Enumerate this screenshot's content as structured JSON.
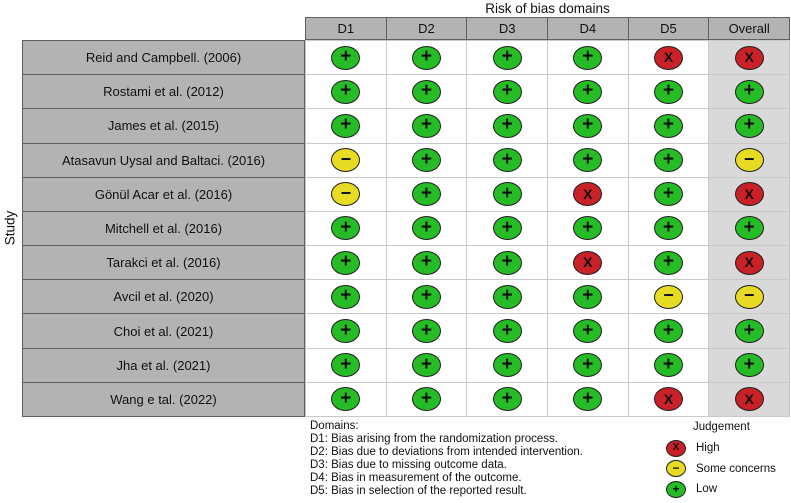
{
  "chart_data": {
    "type": "table",
    "title": "Risk of bias domains",
    "ylabel": "Study",
    "columns": [
      "D1",
      "D2",
      "D3",
      "D4",
      "D5",
      "Overall"
    ],
    "legend_position": "bottom",
    "judgement_styles": {
      "low": {
        "symbol": "+",
        "color": "#26bc26",
        "label": "Low"
      },
      "some": {
        "symbol": "−",
        "color": "#e7dc23",
        "label": "Some concerns"
      },
      "high": {
        "symbol": "X",
        "color": "#c92127",
        "label": "High"
      }
    },
    "rows": [
      {
        "study": "Reid and Campbell. (2006)",
        "judgements": [
          "low",
          "low",
          "low",
          "low",
          "high",
          "high"
        ]
      },
      {
        "study": "Rostami et al. (2012)",
        "judgements": [
          "low",
          "low",
          "low",
          "low",
          "low",
          "low"
        ]
      },
      {
        "study": "James et al. (2015)",
        "judgements": [
          "low",
          "low",
          "low",
          "low",
          "low",
          "low"
        ]
      },
      {
        "study": "Atasavun Uysal and Baltaci. (2016)",
        "judgements": [
          "some",
          "low",
          "low",
          "low",
          "low",
          "some"
        ]
      },
      {
        "study": "Gönül Acar et al. (2016)",
        "judgements": [
          "some",
          "low",
          "low",
          "high",
          "low",
          "high"
        ]
      },
      {
        "study": "Mitchell et al. (2016)",
        "judgements": [
          "low",
          "low",
          "low",
          "low",
          "low",
          "low"
        ]
      },
      {
        "study": "Tarakci et al. (2016)",
        "judgements": [
          "low",
          "low",
          "low",
          "high",
          "low",
          "high"
        ]
      },
      {
        "study": "Avcil et al. (2020)",
        "judgements": [
          "low",
          "low",
          "low",
          "low",
          "some",
          "some"
        ]
      },
      {
        "study": "Choi et al. (2021)",
        "judgements": [
          "low",
          "low",
          "low",
          "low",
          "low",
          "low"
        ]
      },
      {
        "study": "Jha et al. (2021)",
        "judgements": [
          "low",
          "low",
          "low",
          "low",
          "low",
          "low"
        ]
      },
      {
        "study": "Wang e tal. (2022)",
        "judgements": [
          "low",
          "low",
          "low",
          "low",
          "high",
          "high"
        ]
      }
    ]
  },
  "domains_legend": {
    "heading": "Domains:",
    "items": [
      "D1: Bias arising from the randomization process.",
      "D2: Bias due to deviations from intended intervention.",
      "D3: Bias due to missing outcome data.",
      "D4: Bias in measurement of the outcome.",
      "D5: Bias in selection of the reported result."
    ]
  },
  "judgement_legend": {
    "heading": "Judgement",
    "items": [
      {
        "key": "high",
        "label": "High"
      },
      {
        "key": "some",
        "label": "Some concerns"
      },
      {
        "key": "low",
        "label": "Low"
      }
    ]
  }
}
